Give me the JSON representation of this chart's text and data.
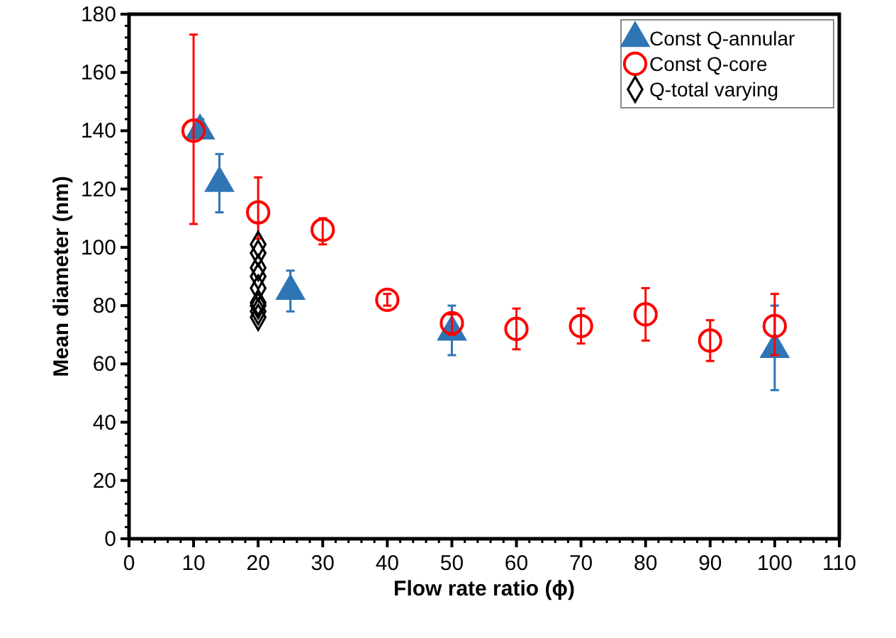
{
  "chart_data": {
    "type": "scatter",
    "xlabel": "Flow rate ratio (ϕ)",
    "ylabel": "Mean diameter (nm)",
    "xlim": [
      0,
      110
    ],
    "ylim": [
      0,
      180
    ],
    "xticks": [
      0,
      10,
      20,
      30,
      40,
      50,
      60,
      70,
      80,
      90,
      100,
      110
    ],
    "yticks": [
      0,
      20,
      40,
      60,
      80,
      100,
      120,
      140,
      160,
      180
    ],
    "grid": false,
    "legend": "top right",
    "series": [
      {
        "name": "Const Q-annular",
        "color": "#2e75b6",
        "marker": "triangle",
        "x": [
          11,
          14,
          25,
          50,
          100
        ],
        "values": [
          140,
          122,
          85,
          71,
          65
        ],
        "errors": [
          [
            138,
            144
          ],
          [
            112,
            132
          ],
          [
            78,
            92
          ],
          [
            63,
            80
          ],
          [
            51,
            80
          ]
        ]
      },
      {
        "name": "Const Q-core",
        "color": "#ff0000",
        "marker": "circle",
        "x": [
          10,
          20,
          30,
          40,
          50,
          60,
          70,
          80,
          90,
          100
        ],
        "values": [
          140,
          112,
          106,
          82,
          74,
          72,
          73,
          77,
          68,
          73
        ],
        "errors": [
          [
            108,
            173
          ],
          [
            103,
            124
          ],
          [
            101,
            110
          ],
          [
            80,
            84
          ],
          [
            70,
            77
          ],
          [
            65,
            79
          ],
          [
            67,
            79
          ],
          [
            68,
            86
          ],
          [
            61,
            75
          ],
          [
            63,
            84
          ]
        ]
      },
      {
        "name": "Q-total varying",
        "color": "#000000",
        "marker": "diamond",
        "x": [
          20,
          20,
          20,
          20,
          20,
          20,
          20,
          20,
          20
        ],
        "values": [
          76,
          78,
          80,
          81,
          86,
          90,
          93,
          98,
          101
        ]
      }
    ]
  }
}
